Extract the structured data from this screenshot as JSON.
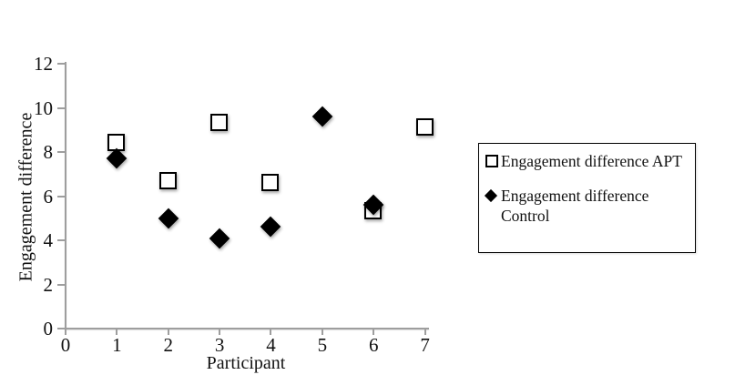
{
  "chart_data": {
    "type": "scatter",
    "title": "",
    "xlabel": "Participant",
    "ylabel": "Engagement difference",
    "xlim": [
      0,
      7
    ],
    "ylim": [
      0,
      12
    ],
    "xticks": [
      0,
      1,
      2,
      3,
      4,
      5,
      6,
      7
    ],
    "yticks": [
      0,
      2,
      4,
      6,
      8,
      10,
      12
    ],
    "grid": false,
    "legend_position": "right-outside",
    "axis_color": "#9e9e9e",
    "marker_color": "#000000",
    "series": [
      {
        "name": "Engagement difference APT",
        "marker": "open-square",
        "points": [
          {
            "x": 1,
            "y": 8.4
          },
          {
            "x": 2,
            "y": 6.7
          },
          {
            "x": 3,
            "y": 9.3
          },
          {
            "x": 4,
            "y": 6.6
          },
          {
            "x": 6,
            "y": 5.3
          },
          {
            "x": 7,
            "y": 9.1
          }
        ]
      },
      {
        "name": "Engagement difference Control",
        "marker": "filled-diamond",
        "points": [
          {
            "x": 1,
            "y": 7.7
          },
          {
            "x": 2,
            "y": 5.0
          },
          {
            "x": 3,
            "y": 4.1
          },
          {
            "x": 4,
            "y": 4.6
          },
          {
            "x": 5,
            "y": 9.6
          },
          {
            "x": 6,
            "y": 5.6
          }
        ]
      }
    ]
  }
}
